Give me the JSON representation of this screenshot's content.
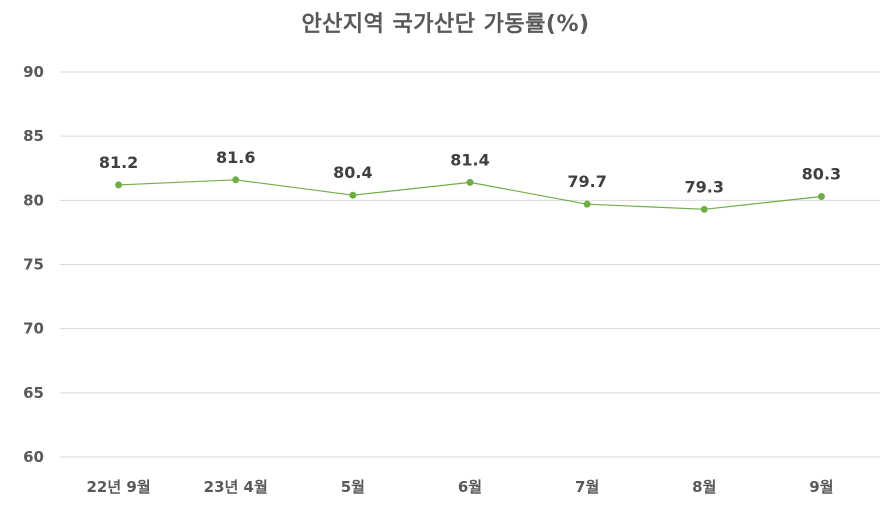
{
  "chart_data": {
    "type": "line",
    "title": "안산지역 국가산단 가동률(%)",
    "xlabel": "",
    "ylabel": "",
    "categories": [
      "22년 9월",
      "23년 4월",
      "5월",
      "6월",
      "7월",
      "8월",
      "9월"
    ],
    "series": [
      {
        "values": [
          81.2,
          81.6,
          80.4,
          81.4,
          79.7,
          79.3,
          80.3
        ],
        "data_labels": [
          "81.2",
          "81.6",
          "80.4",
          "81.4",
          "79.7",
          "79.3",
          "80.3"
        ]
      }
    ],
    "ylim": [
      60,
      90
    ],
    "yticks": [
      60,
      65,
      70,
      75,
      80,
      85,
      90
    ],
    "grid": true,
    "legend": "none",
    "colors": {
      "line": "#70AD47",
      "marker": "#70AD47",
      "grid": "#D9D9D9",
      "axis_text": "#595959",
      "data_label_text": "#404040"
    }
  }
}
